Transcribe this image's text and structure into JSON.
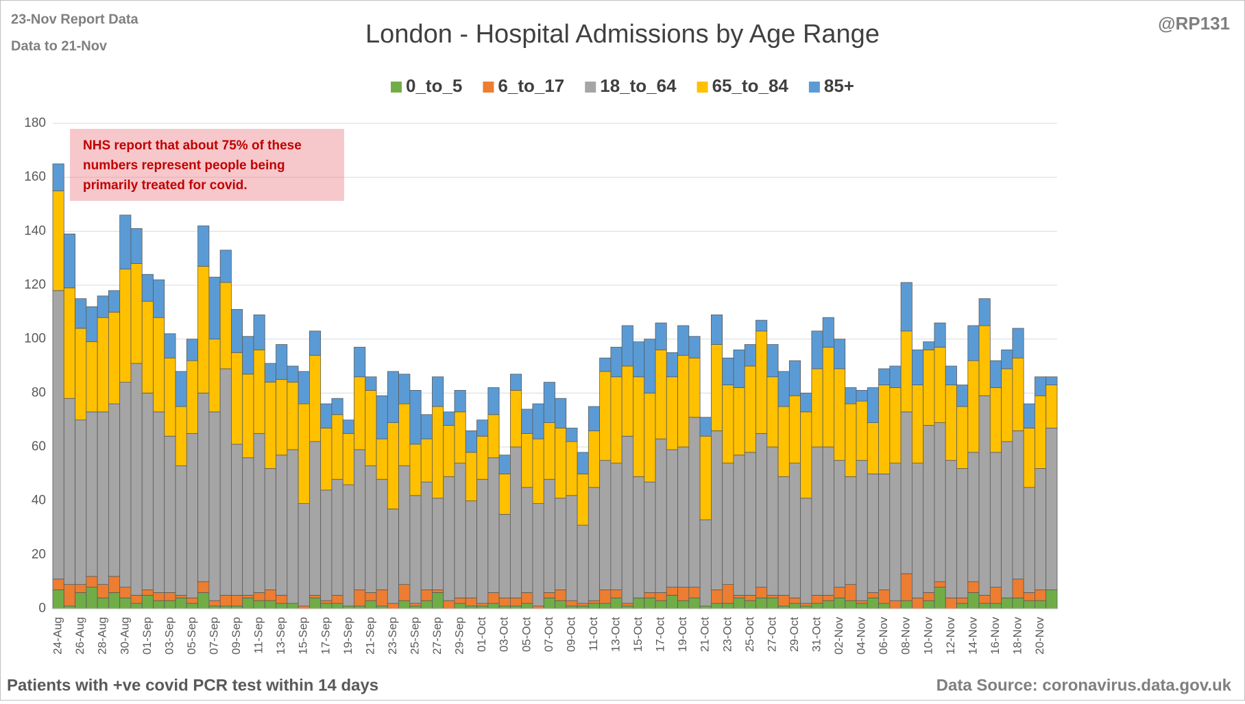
{
  "chart_data": {
    "type": "stacked_bar",
    "title": "London - Hospital Admissions by Age Range",
    "report_date": "23-Nov Report Data",
    "data_to": "Data to 21-Nov",
    "author": "@RP131",
    "annotation": [
      "NHS report that about 75% of these",
      "numbers represent people being",
      "primarily treated for covid."
    ],
    "footer_left": "Patients with  +ve covid PCR test within 14 days",
    "footer_right": "Data Source: coronavirus.data.gov.uk",
    "legend": "top",
    "grid": true,
    "ylim": [
      0,
      180
    ],
    "yticks": [
      0,
      20,
      40,
      60,
      80,
      100,
      120,
      140,
      160,
      180
    ],
    "categories": [
      "24-Aug",
      null,
      "26-Aug",
      null,
      "28-Aug",
      null,
      "30-Aug",
      null,
      "01-Sep",
      null,
      "03-Sep",
      null,
      "05-Sep",
      null,
      "07-Sep",
      null,
      "09-Sep",
      null,
      "11-Sep",
      null,
      "13-Sep",
      null,
      "15-Sep",
      null,
      "17-Sep",
      null,
      "19-Sep",
      null,
      "21-Sep",
      null,
      "23-Sep",
      null,
      "25-Sep",
      null,
      "27-Sep",
      null,
      "29-Sep",
      null,
      "01-Oct",
      null,
      "03-Oct",
      null,
      "05-Oct",
      null,
      "07-Oct",
      null,
      "09-Oct",
      null,
      "11-Oct",
      null,
      "13-Oct",
      null,
      "15-Oct",
      null,
      "17-Oct",
      null,
      "19-Oct",
      null,
      "21-Oct",
      null,
      "23-Oct",
      null,
      "25-Oct",
      null,
      "27-Oct",
      null,
      "29-Oct",
      null,
      "31-Oct",
      null,
      "02-Nov",
      null,
      "04-Nov",
      null,
      "06-Nov",
      null,
      "08-Nov",
      null,
      "10-Nov",
      null,
      "12-Nov",
      null,
      "14-Nov",
      null,
      "16-Nov",
      null,
      "18-Nov",
      null,
      "20-Nov",
      null
    ],
    "series": [
      {
        "name": "0_to_5",
        "color": "#70ad47",
        "values": [
          7,
          1,
          6,
          8,
          4,
          6,
          4,
          2,
          5,
          3,
          3,
          4,
          2,
          6,
          1,
          1,
          1,
          4,
          3,
          3,
          2,
          2,
          0,
          4,
          2,
          2,
          1,
          1,
          3,
          1,
          0,
          3,
          1,
          3,
          6,
          0,
          2,
          1,
          1,
          2,
          1,
          1,
          2,
          0,
          4,
          3,
          1,
          1,
          2,
          2,
          4,
          1,
          4,
          4,
          3,
          5,
          3,
          4,
          1,
          2,
          2,
          4,
          3,
          4,
          4,
          1,
          2,
          1,
          2,
          3,
          4,
          3,
          2,
          4,
          2,
          0,
          3,
          0,
          3,
          8,
          0,
          2,
          6,
          2,
          2,
          4,
          4,
          3,
          3,
          7
        ]
      },
      {
        "name": "6_to_17",
        "color": "#ed7d31",
        "values": [
          4,
          8,
          3,
          4,
          5,
          6,
          4,
          3,
          2,
          3,
          3,
          1,
          2,
          4,
          2,
          4,
          4,
          1,
          3,
          4,
          3,
          0,
          1,
          1,
          1,
          3,
          0,
          6,
          3,
          6,
          2,
          6,
          1,
          4,
          1,
          3,
          2,
          3,
          1,
          4,
          3,
          3,
          4,
          1,
          2,
          4,
          2,
          1,
          1,
          5,
          3,
          1,
          0,
          2,
          3,
          3,
          5,
          4,
          0,
          5,
          7,
          1,
          2,
          4,
          1,
          4,
          2,
          1,
          3,
          2,
          4,
          6,
          1,
          2,
          5,
          3,
          10,
          4,
          3,
          2,
          4,
          2,
          4,
          3,
          6,
          0,
          7,
          3,
          4,
          0
        ]
      },
      {
        "name": "18_to_64",
        "color": "#a5a5a5",
        "values": [
          107,
          69,
          61,
          61,
          64,
          64,
          76,
          86,
          73,
          67,
          58,
          48,
          61,
          70,
          70,
          84,
          56,
          51,
          59,
          45,
          52,
          57,
          38,
          57,
          41,
          43,
          45,
          52,
          47,
          41,
          35,
          44,
          40,
          40,
          34,
          46,
          50,
          36,
          46,
          50,
          31,
          56,
          39,
          38,
          42,
          34,
          39,
          29,
          42,
          48,
          47,
          62,
          45,
          41,
          57,
          51,
          52,
          63,
          32,
          59,
          45,
          52,
          53,
          57,
          55,
          44,
          50,
          39,
          55,
          55,
          47,
          40,
          52,
          44,
          43,
          51,
          60,
          50,
          62,
          59,
          51,
          48,
          48,
          74,
          50,
          58,
          55,
          39,
          45,
          60
        ]
      },
      {
        "name": "65_to_84",
        "color": "#ffc000",
        "values": [
          37,
          41,
          34,
          26,
          35,
          34,
          42,
          37,
          34,
          35,
          29,
          22,
          27,
          47,
          27,
          32,
          34,
          31,
          31,
          32,
          28,
          25,
          37,
          32,
          23,
          24,
          19,
          27,
          28,
          15,
          32,
          23,
          19,
          16,
          34,
          19,
          19,
          18,
          16,
          16,
          15,
          21,
          20,
          24,
          21,
          26,
          20,
          19,
          21,
          33,
          32,
          26,
          37,
          33,
          33,
          27,
          34,
          22,
          31,
          32,
          29,
          25,
          32,
          38,
          26,
          26,
          25,
          32,
          29,
          37,
          34,
          27,
          22,
          19,
          33,
          28,
          30,
          29,
          28,
          28,
          28,
          23,
          34,
          26,
          24,
          27,
          27,
          22,
          27,
          16
        ]
      },
      {
        "name": "85+",
        "color": "#5b9bd5",
        "values": [
          10,
          20,
          11,
          13,
          8,
          8,
          20,
          13,
          10,
          14,
          9,
          13,
          8,
          15,
          23,
          12,
          16,
          14,
          13,
          7,
          13,
          6,
          12,
          9,
          9,
          6,
          5,
          11,
          5,
          16,
          19,
          11,
          20,
          9,
          11,
          5,
          8,
          8,
          6,
          10,
          7,
          6,
          9,
          13,
          15,
          11,
          5,
          8,
          9,
          5,
          11,
          15,
          13,
          20,
          10,
          9,
          11,
          8,
          7,
          11,
          10,
          14,
          8,
          4,
          12,
          13,
          13,
          7,
          14,
          11,
          11,
          6,
          4,
          13,
          6,
          8,
          18,
          13,
          3,
          9,
          7,
          8,
          13,
          10,
          10,
          7,
          11,
          9,
          7,
          3
        ]
      }
    ]
  }
}
